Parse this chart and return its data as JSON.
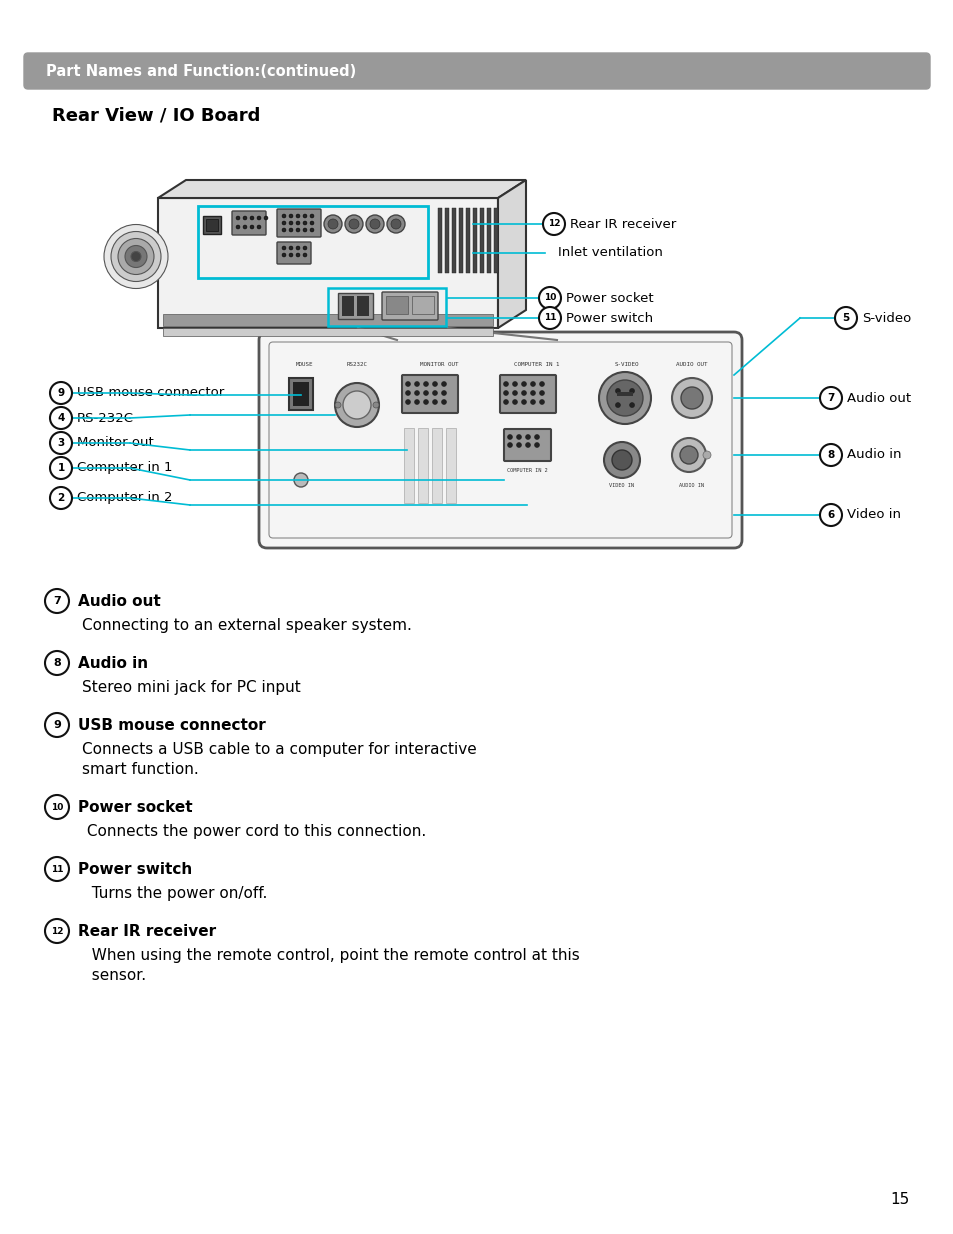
{
  "page_bg": "#ffffff",
  "header_bg": "#999999",
  "header_text": "Part Names and Function:(continued)",
  "header_text_color": "#ffffff",
  "section_title": "Rear View / IO Board",
  "cyan_color": "#00bcd4",
  "descriptions": [
    {
      "number": "7",
      "title": "Audio out",
      "body": "Connecting to an external speaker system."
    },
    {
      "number": "8",
      "title": "Audio in",
      "body": "Stereo mini jack for PC input"
    },
    {
      "number": "9",
      "title": "USB mouse connector",
      "body": "Connects a USB cable to a computer for interactive\nsmart function."
    },
    {
      "number": "10",
      "title": "Power socket",
      "body": " Connects the power cord to this connection."
    },
    {
      "number": "11",
      "title": "Power switch",
      "body": "  Turns the power on/off."
    },
    {
      "number": "12",
      "title": "Rear IR receiver",
      "body": "  When using the remote control, point the remote control at this\n  sensor."
    }
  ],
  "page_number": "15"
}
